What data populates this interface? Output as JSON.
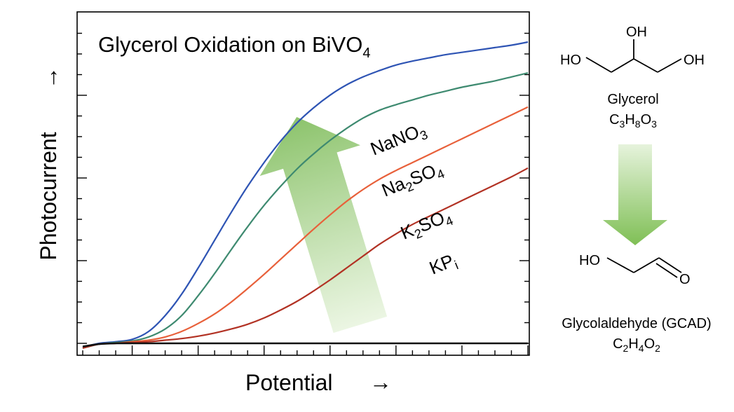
{
  "chart_data": {
    "type": "line",
    "title": "Glycerol Oxidation on BiVO",
    "title_sub": "4",
    "xlabel": "Potential",
    "ylabel": "Photocurrent",
    "x": [
      0,
      0.25,
      0.5,
      0.75,
      1,
      1.25,
      1.5,
      1.75,
      2,
      2.25,
      2.5,
      2.75,
      3,
      3.25,
      3.5,
      3.75,
      4,
      4.25,
      4.5,
      4.75,
      5,
      5.25,
      5.5,
      5.75,
      6,
      6.25,
      6.5,
      6.75
    ],
    "xlim": [
      0,
      6.75
    ],
    "ylim": [
      -0.1,
      4.1
    ],
    "grid": false,
    "series": [
      {
        "label_main": "NaNO",
        "label_sub": "3",
        "label_pos": "",
        "color": "#2e54b4",
        "values": [
          -0.05,
          0.0,
          0.02,
          0.05,
          0.15,
          0.35,
          0.62,
          0.95,
          1.3,
          1.65,
          1.98,
          2.28,
          2.55,
          2.78,
          2.97,
          3.13,
          3.26,
          3.36,
          3.44,
          3.51,
          3.56,
          3.6,
          3.64,
          3.67,
          3.7,
          3.73,
          3.76,
          3.8
        ]
      },
      {
        "label_main": "Na",
        "label_sub": "2",
        "label_tail": "SO",
        "label_sub2": "4",
        "color": "#3e8a70",
        "values": [
          -0.06,
          -0.01,
          0.01,
          0.03,
          0.08,
          0.18,
          0.35,
          0.6,
          0.88,
          1.18,
          1.47,
          1.74,
          1.98,
          2.2,
          2.39,
          2.56,
          2.71,
          2.84,
          2.94,
          3.01,
          3.07,
          3.13,
          3.18,
          3.23,
          3.27,
          3.31,
          3.36,
          3.41
        ]
      },
      {
        "label_main": "K",
        "label_sub": "2",
        "label_tail": "SO",
        "label_sub2": "4",
        "color": "#e8603a",
        "values": [
          -0.06,
          -0.01,
          0.0,
          0.02,
          0.04,
          0.08,
          0.15,
          0.25,
          0.37,
          0.52,
          0.69,
          0.87,
          1.06,
          1.25,
          1.44,
          1.62,
          1.79,
          1.94,
          2.07,
          2.18,
          2.28,
          2.38,
          2.48,
          2.58,
          2.68,
          2.78,
          2.88,
          2.98
        ]
      },
      {
        "label_main": "KP",
        "label_sub": "i",
        "color": "#b23224",
        "values": [
          -0.06,
          -0.01,
          0.0,
          0.01,
          0.02,
          0.04,
          0.06,
          0.09,
          0.13,
          0.18,
          0.24,
          0.32,
          0.42,
          0.53,
          0.66,
          0.8,
          0.95,
          1.1,
          1.25,
          1.38,
          1.5,
          1.6,
          1.7,
          1.8,
          1.9,
          2.0,
          2.1,
          2.21
        ]
      },
      {
        "label_main": "",
        "color": "#111111",
        "values": [
          -0.04,
          -0.01,
          0.0,
          0.0,
          0.0,
          0.0,
          0.0,
          0.0,
          0.0,
          0.0,
          0.0,
          0.0,
          0.0,
          0.0,
          0.0,
          0.0,
          0.0,
          0.0,
          0.0,
          0.0,
          0.0,
          0.0,
          0.0,
          0.0,
          0.0,
          0.0,
          0.0,
          0.0
        ]
      }
    ],
    "annotations": {
      "arrow_color": "#7fbf5a"
    }
  },
  "scheme": {
    "glycerol_name": "Glycerol",
    "glycerol_formula": [
      {
        "t": "C"
      },
      {
        "t": "3",
        "sub": true
      },
      {
        "t": "H"
      },
      {
        "t": "8",
        "sub": true
      },
      {
        "t": "O"
      },
      {
        "t": "3",
        "sub": true
      }
    ],
    "glycerol_labels": {
      "oh_top": "OH",
      "ho_left": "HO",
      "oh_right": "OH"
    },
    "gcad_name": "Glycolaldehyde (GCAD)",
    "gcad_formula": [
      {
        "t": "C"
      },
      {
        "t": "2",
        "sub": true
      },
      {
        "t": "H"
      },
      {
        "t": "4",
        "sub": true
      },
      {
        "t": "O"
      },
      {
        "t": "2",
        "sub": true
      }
    ],
    "gcad_labels": {
      "ho": "HO",
      "o": "O"
    },
    "arrow_color": "#8cc866"
  },
  "axis_arrows": {
    "x": "→",
    "y": "→"
  }
}
